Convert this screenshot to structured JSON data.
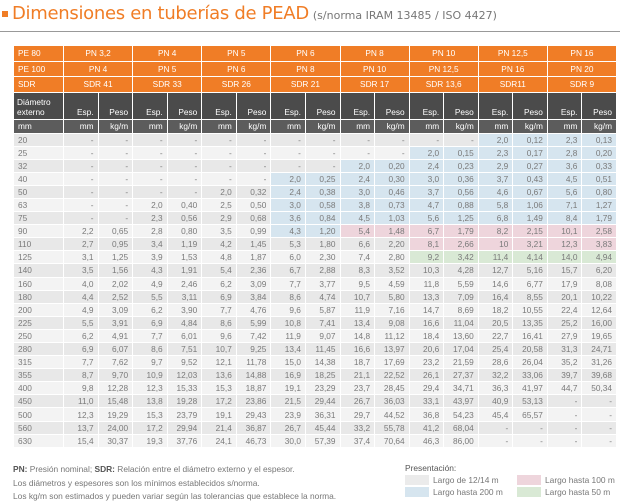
{
  "title": "Dimensiones en tuberías de PEAD",
  "subtitle": "(s/norma IRAM 13485 / ISO 4427)",
  "header": {
    "pe80_label": "PE 80",
    "pe80": [
      "PN 3,2",
      "PN 4",
      "PN 5",
      "PN 6",
      "PN 8",
      "PN 10",
      "PN 12,5",
      "PN 16"
    ],
    "pe100_label": "PE 100",
    "pe100": [
      "PN 4",
      "PN 5",
      "PN 6",
      "PN 8",
      "PN 10",
      "PN 12,5",
      "PN 16",
      "PN 20"
    ],
    "sdr_label": "SDR",
    "sdr": [
      "SDR 41",
      "SDR 33",
      "SDR 26",
      "SDR 21",
      "SDR 17",
      "SDR 13,6",
      "SDR11",
      "SDR 9"
    ],
    "diam_label": "Diámetro externo",
    "esp": "Esp.",
    "peso": "Peso",
    "unit_mm": "mm",
    "unit_kg": "kg/m"
  },
  "rows": [
    {
      "d": "20",
      "v": [
        "-",
        "-",
        "-",
        "-",
        "-",
        "-",
        "-",
        "-",
        "-",
        "-",
        "-",
        "-",
        "2,0",
        "0,12",
        "2,3",
        "0,13"
      ],
      "tint": [
        "",
        "",
        "",
        "",
        "",
        "",
        "b",
        "b"
      ]
    },
    {
      "d": "25",
      "v": [
        "-",
        "-",
        "-",
        "-",
        "-",
        "-",
        "-",
        "-",
        "-",
        "-",
        "2,0",
        "0,15",
        "2,3",
        "0,17",
        "2,8",
        "0,20"
      ],
      "tint": [
        "",
        "",
        "",
        "",
        "",
        "b",
        "b",
        "b"
      ]
    },
    {
      "d": "32",
      "v": [
        "-",
        "-",
        "-",
        "-",
        "-",
        "-",
        "-",
        "-",
        "2,0",
        "0,20",
        "2,4",
        "0,23",
        "2,9",
        "0,27",
        "3,6",
        "0,33"
      ],
      "tint": [
        "",
        "",
        "",
        "",
        "b",
        "b",
        "b",
        "b"
      ]
    },
    {
      "d": "40",
      "v": [
        "-",
        "-",
        "-",
        "-",
        "-",
        "-",
        "2,0",
        "0,25",
        "2,4",
        "0,30",
        "3,0",
        "0,36",
        "3,7",
        "0,43",
        "4,5",
        "0,51"
      ],
      "tint": [
        "",
        "",
        "",
        "b",
        "b",
        "b",
        "b",
        "b"
      ]
    },
    {
      "d": "50",
      "v": [
        "-",
        "-",
        "-",
        "-",
        "2,0",
        "0,32",
        "2,4",
        "0,38",
        "3,0",
        "0,46",
        "3,7",
        "0,56",
        "4,6",
        "0,67",
        "5,6",
        "0,80"
      ],
      "tint": [
        "",
        "",
        "",
        "b",
        "b",
        "b",
        "b",
        "b"
      ]
    },
    {
      "d": "63",
      "v": [
        "-",
        "-",
        "2,0",
        "0,40",
        "2,5",
        "0,50",
        "3,0",
        "0,58",
        "3,8",
        "0,73",
        "4,7",
        "0,88",
        "5,8",
        "1,06",
        "7,1",
        "1,27"
      ],
      "tint": [
        "",
        "",
        "",
        "b",
        "b",
        "b",
        "b",
        "b"
      ]
    },
    {
      "d": "75",
      "v": [
        "-",
        "-",
        "2,3",
        "0,56",
        "2,9",
        "0,68",
        "3,6",
        "0,84",
        "4,5",
        "1,03",
        "5,6",
        "1,25",
        "6,8",
        "1,49",
        "8,4",
        "1,79"
      ],
      "tint": [
        "",
        "",
        "",
        "b",
        "b",
        "b",
        "b",
        "b"
      ]
    },
    {
      "d": "90",
      "v": [
        "2,2",
        "0,65",
        "2,8",
        "0,80",
        "3,5",
        "0,99",
        "4,3",
        "1,20",
        "5,4",
        "1,48",
        "6,7",
        "1,79",
        "8,2",
        "2,15",
        "10,1",
        "2,58"
      ],
      "tint": [
        "",
        "",
        "",
        "b",
        "p",
        "p",
        "p",
        "p"
      ]
    },
    {
      "d": "110",
      "v": [
        "2,7",
        "0,95",
        "3,4",
        "1,19",
        "4,2",
        "1,45",
        "5,3",
        "1,80",
        "6,6",
        "2,20",
        "8,1",
        "2,66",
        "10",
        "3,21",
        "12,3",
        "3,83"
      ],
      "tint": [
        "",
        "",
        "",
        "",
        "",
        "p",
        "p",
        "p"
      ]
    },
    {
      "d": "125",
      "v": [
        "3,1",
        "1,25",
        "3,9",
        "1,53",
        "4,8",
        "1,87",
        "6,0",
        "2,30",
        "7,4",
        "2,80",
        "9,2",
        "3,42",
        "11,4",
        "4,14",
        "14,0",
        "4,94"
      ],
      "tint": [
        "",
        "",
        "",
        "",
        "",
        "g",
        "g",
        "g"
      ]
    },
    {
      "d": "140",
      "v": [
        "3,5",
        "1,56",
        "4,3",
        "1,91",
        "5,4",
        "2,36",
        "6,7",
        "2,88",
        "8,3",
        "3,52",
        "10,3",
        "4,28",
        "12,7",
        "5,16",
        "15,7",
        "6,20"
      ]
    },
    {
      "d": "160",
      "v": [
        "4,0",
        "2,02",
        "4,9",
        "2,46",
        "6,2",
        "3,09",
        "7,7",
        "3,77",
        "9,5",
        "4,59",
        "11,8",
        "5,59",
        "14,6",
        "6,77",
        "17,9",
        "8,08"
      ]
    },
    {
      "d": "180",
      "v": [
        "4,4",
        "2,52",
        "5,5",
        "3,11",
        "6,9",
        "3,84",
        "8,6",
        "4,74",
        "10,7",
        "5,80",
        "13,3",
        "7,09",
        "16,4",
        "8,55",
        "20,1",
        "10,22"
      ]
    },
    {
      "d": "200",
      "v": [
        "4,9",
        "3,09",
        "6,2",
        "3,90",
        "7,7",
        "4,76",
        "9,6",
        "5,87",
        "11,9",
        "7,16",
        "14,7",
        "8,69",
        "18,2",
        "10,55",
        "22,4",
        "12,64"
      ]
    },
    {
      "d": "225",
      "v": [
        "5,5",
        "3,91",
        "6,9",
        "4,84",
        "8,6",
        "5,99",
        "10,8",
        "7,41",
        "13,4",
        "9,08",
        "16,6",
        "11,04",
        "20,5",
        "13,35",
        "25,2",
        "16,00"
      ]
    },
    {
      "d": "250",
      "v": [
        "6,2",
        "4,91",
        "7,7",
        "6,01",
        "9,6",
        "7,42",
        "11,9",
        "9,07",
        "14,8",
        "11,12",
        "18,4",
        "13,60",
        "22,7",
        "16,41",
        "27,9",
        "19,65"
      ]
    },
    {
      "d": "280",
      "v": [
        "6,9",
        "6,07",
        "8,6",
        "7,51",
        "10,7",
        "9,25",
        "13,4",
        "11,45",
        "16,6",
        "13,97",
        "20,6",
        "17,04",
        "25,4",
        "20,58",
        "31,3",
        "24,71"
      ]
    },
    {
      "d": "315",
      "v": [
        "7,7",
        "7,62",
        "9,7",
        "9,52",
        "12,1",
        "11,78",
        "15,0",
        "14,38",
        "18,7",
        "17,69",
        "23,2",
        "21,59",
        "28,6",
        "26,04",
        "35,2",
        "31,26"
      ]
    },
    {
      "d": "355",
      "v": [
        "8,7",
        "9,70",
        "10,9",
        "12,03",
        "13,6",
        "14,88",
        "16,9",
        "18,25",
        "21,1",
        "22,52",
        "26,1",
        "27,37",
        "32,2",
        "33,06",
        "39,7",
        "39,68"
      ]
    },
    {
      "d": "400",
      "v": [
        "9,8",
        "12,28",
        "12,3",
        "15,33",
        "15,3",
        "18,87",
        "19,1",
        "23,29",
        "23,7",
        "28,45",
        "29,4",
        "34,71",
        "36,3",
        "41,97",
        "44,7",
        "50,34"
      ]
    },
    {
      "d": "450",
      "v": [
        "11,0",
        "15,48",
        "13,8",
        "19,28",
        "17,2",
        "23,86",
        "21,5",
        "29,44",
        "26,7",
        "36,03",
        "33,1",
        "43,97",
        "40,9",
        "53,13",
        "-",
        "-"
      ]
    },
    {
      "d": "500",
      "v": [
        "12,3",
        "19,29",
        "15,3",
        "23,79",
        "19,1",
        "29,43",
        "23,9",
        "36,31",
        "29,7",
        "44,52",
        "36,8",
        "54,23",
        "45,4",
        "65,57",
        "-",
        "-"
      ]
    },
    {
      "d": "560",
      "v": [
        "13,7",
        "24,00",
        "17,2",
        "29,94",
        "21,4",
        "36,87",
        "26,7",
        "45,44",
        "33,2",
        "55,78",
        "41,2",
        "68,04",
        "-",
        "-",
        "-",
        "-"
      ]
    },
    {
      "d": "630",
      "v": [
        "15,4",
        "30,37",
        "19,3",
        "37,76",
        "24,1",
        "46,73",
        "30,0",
        "57,39",
        "37,4",
        "70,64",
        "46,3",
        "86,00",
        "-",
        "-",
        "-",
        "-"
      ]
    }
  ],
  "notes": {
    "pn_abbr": "PN:",
    "pn_text": " Presión nominal; ",
    "sdr_abbr": "SDR:",
    "sdr_text": " Relación entre el diámetro externo y el espesor.",
    "line2": "Los diámetros y espesores son los mínimos establecidos s/norma.",
    "line3": "Los kg/m son estimados y pueden variar según las tolerancias que establece la norma."
  },
  "legend": {
    "title": "Presentación:",
    "items": [
      {
        "label": "Largo de 12/14 m",
        "color": "#ebebeb"
      },
      {
        "label": "Largo hasta 100 m",
        "color": "#eed5dc"
      },
      {
        "label": "Largo hasta 200 m",
        "color": "#d6e5ef"
      },
      {
        "label": "Largo hasta 50 m",
        "color": "#d9e9d5"
      }
    ]
  }
}
